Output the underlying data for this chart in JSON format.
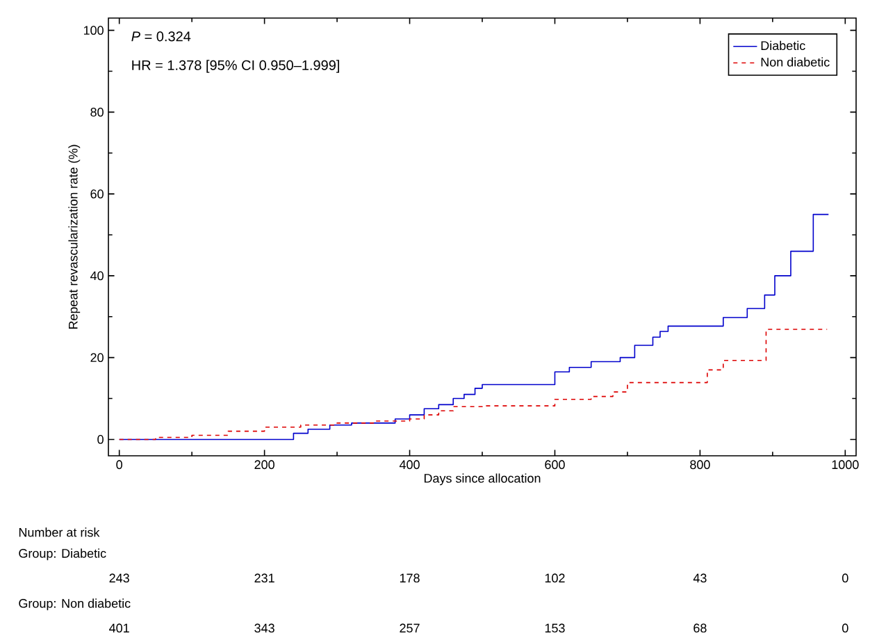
{
  "chart_data": {
    "type": "step",
    "xlabel": "Days since allocation",
    "ylabel": "Repeat revascularization rate (%)",
    "xlim": [
      -15,
      1015
    ],
    "ylim": [
      -4,
      103
    ],
    "xticks": [
      0,
      200,
      400,
      600,
      800,
      1000
    ],
    "yticks": [
      0,
      20,
      40,
      60,
      80,
      100
    ],
    "grid": false,
    "legend": "top right",
    "marker": "none",
    "series": [
      {
        "name": "Diabetic",
        "color": "#0000cc",
        "line_style": "solid",
        "x": [
          0,
          240,
          260,
          290,
          320,
          380,
          400,
          420,
          440,
          460,
          475,
          490,
          500,
          600,
          620,
          650,
          690,
          710,
          735,
          745,
          756,
          832,
          865,
          889,
          903,
          925,
          956,
          977
        ],
        "values": [
          0,
          1.5,
          2.5,
          3.5,
          4,
          5,
          6,
          7.5,
          8.5,
          10,
          11,
          12.5,
          13.4,
          16.5,
          17.6,
          19,
          20,
          23,
          25,
          26.4,
          27.7,
          29.8,
          32,
          35.3,
          40,
          46,
          55,
          55
        ]
      },
      {
        "name": "Non diabetic",
        "color": "#dd0000",
        "line_style": "dashed",
        "x": [
          0,
          50,
          100,
          150,
          200,
          250,
          300,
          350,
          400,
          420,
          440,
          460,
          500,
          600,
          650,
          680,
          700,
          810,
          832,
          891,
          975
        ],
        "values": [
          0,
          0.5,
          1,
          2,
          3,
          3.5,
          4,
          4.5,
          5,
          6,
          7,
          8,
          8.2,
          9.8,
          10.5,
          11.6,
          13.9,
          17,
          19.3,
          26.9,
          26.9
        ]
      }
    ],
    "annotations": [
      "*P* = 0.324",
      "HR = 1.378 [95% CI 0.950–1.999]",
      "Number at risk",
      "Group: Diabetic",
      "243",
      "231",
      "178",
      "102",
      "43",
      "0",
      "Group: Non diabetic",
      "401",
      "343",
      "257",
      "153",
      "68",
      "0"
    ]
  }
}
